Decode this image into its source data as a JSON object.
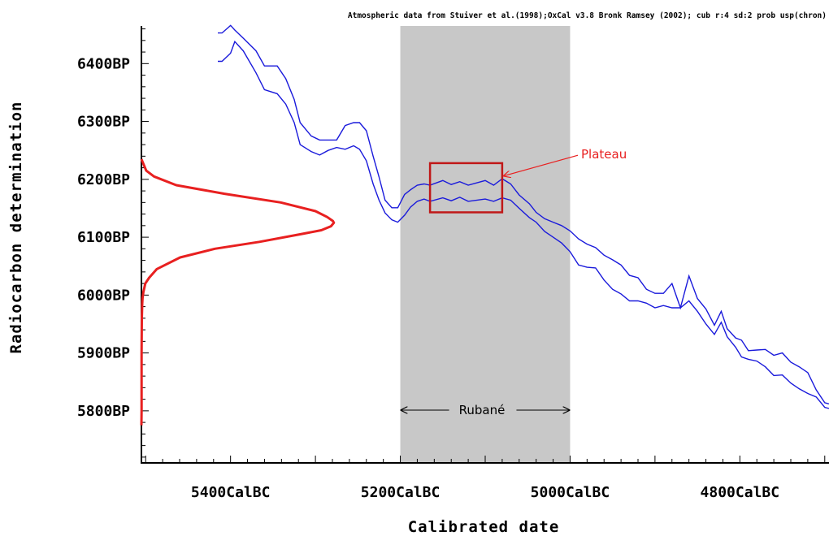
{
  "chart_data": {
    "type": "line",
    "title": "Atmospheric data from Stuiver et al.(1998);OxCal v3.8 Bronk Ramsey (2002); cub r:4 sd:2 prob usp(chron)",
    "xlabel": "Calibrated date",
    "ylabel": "Radiocarbon determination",
    "x_unit": "CalBC",
    "y_unit": "BP",
    "xlim": [
      5505,
      4695
    ],
    "ylim": [
      5710,
      6465
    ],
    "x_ticks": [
      {
        "value": 5400,
        "label": "5400CalBC"
      },
      {
        "value": 5200,
        "label": "5200CalBC"
      },
      {
        "value": 5000,
        "label": "5000CalBC"
      },
      {
        "value": 4800,
        "label": "4800CalBC"
      }
    ],
    "y_ticks": [
      {
        "value": 6400,
        "label": "6400BP"
      },
      {
        "value": 6300,
        "label": "6300BP"
      },
      {
        "value": 6200,
        "label": "6200BP"
      },
      {
        "value": 6100,
        "label": "6100BP"
      },
      {
        "value": 6000,
        "label": "6000BP"
      },
      {
        "value": 5900,
        "label": "5900BP"
      },
      {
        "value": 5800,
        "label": "5800BP"
      }
    ],
    "series": [
      {
        "color": "#1a1adb",
        "x": [
          5415,
          5410,
          5400,
          5395,
          5385,
          5370,
          5360,
          5345,
          5335,
          5325,
          5318,
          5305,
          5295,
          5285,
          5275,
          5265,
          5255,
          5248,
          5240,
          5232,
          5225,
          5218,
          5210,
          5203,
          5195,
          5188,
          5180,
          5172,
          5165,
          5150,
          5140,
          5130,
          5120,
          5100,
          5090,
          5080,
          5070,
          5060,
          5048,
          5040,
          5030,
          5020,
          5010,
          5000,
          4990,
          4980,
          4970,
          4960,
          4950,
          4940,
          4930,
          4920,
          4910,
          4900,
          4890,
          4880,
          4870,
          4860,
          4850,
          4840,
          4830,
          4822,
          4815,
          4805,
          4798,
          4790,
          4780,
          4770,
          4760,
          4750,
          4740,
          4730,
          4720,
          4710,
          4700,
          4695
        ],
        "values": [
          6453,
          6453,
          6466,
          6458,
          6444,
          6422,
          6396,
          6396,
          6374,
          6338,
          6298,
          6275,
          6268,
          6268,
          6268,
          6293,
          6298,
          6298,
          6284,
          6240,
          6204,
          6164,
          6151,
          6151,
          6174,
          6182,
          6190,
          6192,
          6190,
          6198,
          6191,
          6196,
          6190,
          6198,
          6190,
          6201,
          6192,
          6173,
          6158,
          6143,
          6132,
          6126,
          6120,
          6111,
          6097,
          6088,
          6082,
          6069,
          6061,
          6052,
          6034,
          6030,
          6010,
          6003,
          6003,
          6020,
          5978,
          6033,
          5994,
          5976,
          5948,
          5972,
          5942,
          5926,
          5922,
          5904,
          5905,
          5906,
          5896,
          5900,
          5884,
          5876,
          5866,
          5836,
          5814,
          5812
        ]
      },
      {
        "color": "#1a1adb",
        "x": [
          5415,
          5410,
          5400,
          5395,
          5385,
          5370,
          5360,
          5345,
          5335,
          5325,
          5318,
          5305,
          5295,
          5285,
          5275,
          5265,
          5255,
          5248,
          5240,
          5232,
          5225,
          5218,
          5210,
          5203,
          5195,
          5188,
          5180,
          5172,
          5165,
          5150,
          5140,
          5130,
          5120,
          5100,
          5090,
          5080,
          5070,
          5060,
          5048,
          5040,
          5030,
          5020,
          5010,
          5000,
          4990,
          4980,
          4970,
          4960,
          4950,
          4940,
          4930,
          4920,
          4910,
          4900,
          4890,
          4880,
          4870,
          4860,
          4850,
          4840,
          4830,
          4822,
          4815,
          4805,
          4798,
          4790,
          4780,
          4770,
          4760,
          4750,
          4740,
          4730,
          4720,
          4710,
          4700,
          4695
        ],
        "values": [
          6404,
          6404,
          6418,
          6438,
          6422,
          6384,
          6355,
          6348,
          6330,
          6298,
          6260,
          6248,
          6242,
          6250,
          6255,
          6252,
          6258,
          6252,
          6232,
          6192,
          6164,
          6142,
          6130,
          6126,
          6138,
          6152,
          6162,
          6166,
          6162,
          6168,
          6163,
          6169,
          6162,
          6166,
          6162,
          6168,
          6164,
          6150,
          6134,
          6126,
          6110,
          6100,
          6090,
          6075,
          6052,
          6048,
          6047,
          6026,
          6010,
          6002,
          5990,
          5990,
          5986,
          5978,
          5982,
          5978,
          5978,
          5990,
          5972,
          5950,
          5932,
          5953,
          5928,
          5910,
          5893,
          5889,
          5886,
          5876,
          5861,
          5862,
          5848,
          5838,
          5830,
          5824,
          5806,
          5804
        ]
      }
    ],
    "density_curve": {
      "color": "#e82020",
      "y": [
        6235,
        6215,
        6205,
        6190,
        6175,
        6160,
        6145,
        6135,
        6128,
        6125,
        6119,
        6112,
        6105,
        6092,
        6080,
        6065,
        6045,
        6030,
        6020,
        6005,
        5995,
        5985,
        5960,
        5900,
        5840,
        5800,
        5775
      ],
      "prob": [
        0.0,
        0.025,
        0.065,
        0.18,
        0.43,
        0.72,
        0.9,
        0.96,
        0.99,
        0.995,
        0.98,
        0.93,
        0.82,
        0.61,
        0.38,
        0.2,
        0.08,
        0.04,
        0.02,
        0.01,
        0.006,
        0.004,
        0.002,
        0.001,
        0.001,
        0.001,
        0.0
      ]
    },
    "shaded_region": {
      "x_from": 5200,
      "x_to": 5000,
      "color": "#c8c8c8",
      "label": "Rubané"
    },
    "annotations": [
      {
        "label": "Plateau",
        "color": "#e82020",
        "box": {
          "x_from": 5165,
          "x_to": 5080,
          "y_from": 6143,
          "y_to": 6228
        },
        "text_at": {
          "x": 4987,
          "y": 6236
        },
        "arrow_to": {
          "x": 5080,
          "y": 6206
        }
      }
    ]
  }
}
